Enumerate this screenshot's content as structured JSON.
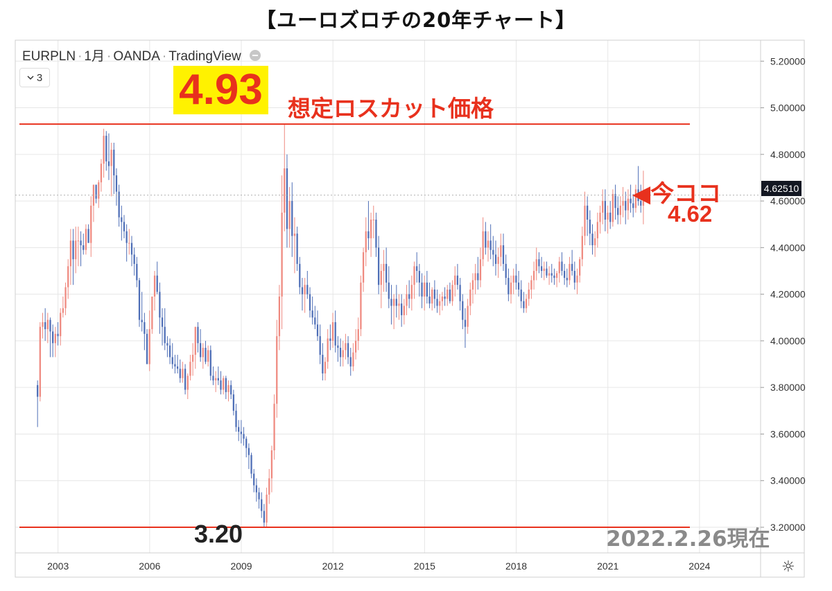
{
  "title": "【ユーロズロチの20年チャート】",
  "header": {
    "symbol": "EURPLN",
    "interval": "1月",
    "broker": "OANDA",
    "platform": "TradingView",
    "indicator_count": "3",
    "indicator_toggle_icon": "chevron-down-icon",
    "visibility_icon": "eye-icon"
  },
  "annotations": {
    "losscut_value": "4.93",
    "losscut_label": "想定ロスカット価格",
    "now_label": "◀今ココ",
    "now_value": "4.62",
    "low_value": "3.20",
    "as_of": "2022.2.26現在"
  },
  "price_tag": "4.62510",
  "settings_icon": "gear-icon",
  "colors": {
    "up": "#ef8a80",
    "down": "#4f6fb7",
    "annotation_red": "#e8311d",
    "highlight_yellow": "#fff200",
    "grid": "#e6e6e6"
  },
  "chart_data": {
    "type": "candlestick",
    "title": "【ユーロズロチの20年チャート】",
    "symbol": "EURPLN",
    "timeframe": "monthly",
    "x_tick_labels": [
      "2003",
      "2006",
      "2009",
      "2012",
      "2015",
      "2018",
      "2021",
      "2024"
    ],
    "y_tick_labels": [
      "5.20000",
      "5.00000",
      "4.80000",
      "4.60000",
      "4.40000",
      "4.20000",
      "4.00000",
      "3.80000",
      "3.60000",
      "3.40000",
      "3.20000"
    ],
    "ylim": [
      3.09,
      5.29
    ],
    "xlim": [
      2001.6,
      2026.0
    ],
    "grid": true,
    "horizontal_lines": [
      {
        "value": 4.93,
        "label": "4.93 想定ロスカット価格"
      },
      {
        "value": 3.2,
        "label": "3.20"
      }
    ],
    "last_price": 4.6251,
    "x_start": 2002.33,
    "x_step": 0.08333,
    "ohlc": [
      [
        3.81,
        3.83,
        3.63,
        3.76
      ],
      [
        3.76,
        4.08,
        3.74,
        4.06
      ],
      [
        4.06,
        4.12,
        4.01,
        4.08
      ],
      [
        4.08,
        4.14,
        4.0,
        4.05
      ],
      [
        4.05,
        4.12,
        3.99,
        4.09
      ],
      [
        4.09,
        4.1,
        3.93,
        4.04
      ],
      [
        4.04,
        4.07,
        3.93,
        3.99
      ],
      [
        3.99,
        4.06,
        3.93,
        4.03
      ],
      [
        4.03,
        4.08,
        3.98,
        4.02
      ],
      [
        4.02,
        4.14,
        3.98,
        4.12
      ],
      [
        4.12,
        4.19,
        4.1,
        4.14
      ],
      [
        4.14,
        4.25,
        4.11,
        4.23
      ],
      [
        4.23,
        4.35,
        4.18,
        4.32
      ],
      [
        4.32,
        4.48,
        4.24,
        4.43
      ],
      [
        4.43,
        4.48,
        4.24,
        4.35
      ],
      [
        4.35,
        4.49,
        4.29,
        4.43
      ],
      [
        4.43,
        4.49,
        4.32,
        4.43
      ],
      [
        4.43,
        4.47,
        4.32,
        4.41
      ],
      [
        4.41,
        4.46,
        4.37,
        4.39
      ],
      [
        4.39,
        4.5,
        4.37,
        4.48
      ],
      [
        4.48,
        4.5,
        4.42,
        4.42
      ],
      [
        4.42,
        4.62,
        4.36,
        4.58
      ],
      [
        4.58,
        4.67,
        4.51,
        4.67
      ],
      [
        4.67,
        4.67,
        4.59,
        4.61
      ],
      [
        4.61,
        4.69,
        4.57,
        4.68
      ],
      [
        4.68,
        4.78,
        4.64,
        4.76
      ],
      [
        4.76,
        4.91,
        4.7,
        4.88
      ],
      [
        4.88,
        4.9,
        4.73,
        4.77
      ],
      [
        4.77,
        4.89,
        4.69,
        4.75
      ],
      [
        4.75,
        4.85,
        4.62,
        4.82
      ],
      [
        4.82,
        4.85,
        4.63,
        4.71
      ],
      [
        4.71,
        4.74,
        4.58,
        4.64
      ],
      [
        4.64,
        4.67,
        4.49,
        4.53
      ],
      [
        4.53,
        4.58,
        4.43,
        4.51
      ],
      [
        4.51,
        4.54,
        4.44,
        4.47
      ],
      [
        4.47,
        4.5,
        4.34,
        4.42
      ],
      [
        4.42,
        4.48,
        4.37,
        4.42
      ],
      [
        4.42,
        4.45,
        4.32,
        4.37
      ],
      [
        4.37,
        4.4,
        4.28,
        4.33
      ],
      [
        4.33,
        4.36,
        4.23,
        4.26
      ],
      [
        4.26,
        4.27,
        4.06,
        4.09
      ],
      [
        4.09,
        4.21,
        4.04,
        4.08
      ],
      [
        4.08,
        4.12,
        3.96,
        4.03
      ],
      [
        4.03,
        4.05,
        3.9,
        3.9
      ],
      [
        3.9,
        4.13,
        3.87,
        4.05
      ],
      [
        4.05,
        4.19,
        4.03,
        4.19
      ],
      [
        4.19,
        4.3,
        4.13,
        4.28
      ],
      [
        4.28,
        4.34,
        4.2,
        4.21
      ],
      [
        4.21,
        4.25,
        4.03,
        4.1
      ],
      [
        4.1,
        4.14,
        3.98,
        4.06
      ],
      [
        4.06,
        4.14,
        3.96,
        3.99
      ],
      [
        3.99,
        4.02,
        3.93,
        3.98
      ],
      [
        3.98,
        4.01,
        3.9,
        3.93
      ],
      [
        3.93,
        3.99,
        3.88,
        3.9
      ],
      [
        3.9,
        3.94,
        3.86,
        3.89
      ],
      [
        3.89,
        3.94,
        3.86,
        3.88
      ],
      [
        3.88,
        3.92,
        3.82,
        3.84
      ],
      [
        3.84,
        3.91,
        3.82,
        3.88
      ],
      [
        3.88,
        3.9,
        3.77,
        3.79
      ],
      [
        3.79,
        3.86,
        3.75,
        3.85
      ],
      [
        3.85,
        3.94,
        3.83,
        3.91
      ],
      [
        3.91,
        3.99,
        3.85,
        3.94
      ],
      [
        3.94,
        4.06,
        3.88,
        4.06
      ],
      [
        4.06,
        4.08,
        3.95,
        3.99
      ],
      [
        3.99,
        4.05,
        3.91,
        3.93
      ],
      [
        3.93,
        3.99,
        3.88,
        3.97
      ],
      [
        3.97,
        4.0,
        3.9,
        3.91
      ],
      [
        3.91,
        3.98,
        3.89,
        3.96
      ],
      [
        3.96,
        3.98,
        3.83,
        3.85
      ],
      [
        3.85,
        3.89,
        3.81,
        3.83
      ],
      [
        3.83,
        3.87,
        3.78,
        3.84
      ],
      [
        3.84,
        3.89,
        3.81,
        3.83
      ],
      [
        3.83,
        3.87,
        3.77,
        3.79
      ],
      [
        3.79,
        3.85,
        3.77,
        3.84
      ],
      [
        3.84,
        3.85,
        3.75,
        3.78
      ],
      [
        3.78,
        3.83,
        3.74,
        3.81
      ],
      [
        3.81,
        3.83,
        3.75,
        3.77
      ],
      [
        3.77,
        3.79,
        3.68,
        3.7
      ],
      [
        3.7,
        3.73,
        3.61,
        3.63
      ],
      [
        3.63,
        3.66,
        3.57,
        3.61
      ],
      [
        3.61,
        3.66,
        3.56,
        3.6
      ],
      [
        3.6,
        3.63,
        3.55,
        3.58
      ],
      [
        3.58,
        3.59,
        3.5,
        3.54
      ],
      [
        3.54,
        3.56,
        3.45,
        3.51
      ],
      [
        3.51,
        3.52,
        3.41,
        3.43
      ],
      [
        3.43,
        3.45,
        3.35,
        3.38
      ],
      [
        3.38,
        3.41,
        3.31,
        3.35
      ],
      [
        3.35,
        3.37,
        3.28,
        3.32
      ],
      [
        3.32,
        3.35,
        3.24,
        3.27
      ],
      [
        3.27,
        3.3,
        3.2,
        3.22
      ],
      [
        3.22,
        3.37,
        3.2,
        3.34
      ],
      [
        3.34,
        3.45,
        3.3,
        3.41
      ],
      [
        3.41,
        3.55,
        3.35,
        3.53
      ],
      [
        3.53,
        3.77,
        3.49,
        3.73
      ],
      [
        3.73,
        4.09,
        3.67,
        4.02
      ],
      [
        4.02,
        4.24,
        3.96,
        4.19
      ],
      [
        4.19,
        4.71,
        4.05,
        4.55
      ],
      [
        4.55,
        4.93,
        4.47,
        4.74
      ],
      [
        4.74,
        4.8,
        4.4,
        4.48
      ],
      [
        4.48,
        4.66,
        4.4,
        4.6
      ],
      [
        4.6,
        4.68,
        4.36,
        4.45
      ],
      [
        4.45,
        4.53,
        4.29,
        4.46
      ],
      [
        4.46,
        4.49,
        4.3,
        4.33
      ],
      [
        4.33,
        4.36,
        4.2,
        4.23
      ],
      [
        4.23,
        4.27,
        4.13,
        4.2
      ],
      [
        4.2,
        4.27,
        4.12,
        4.24
      ],
      [
        4.24,
        4.3,
        4.18,
        4.2
      ],
      [
        4.2,
        4.23,
        4.1,
        4.13
      ],
      [
        4.13,
        4.19,
        4.07,
        4.1
      ],
      [
        4.1,
        4.15,
        4.05,
        4.07
      ],
      [
        4.07,
        4.13,
        4.0,
        4.02
      ],
      [
        4.02,
        4.07,
        3.9,
        3.94
      ],
      [
        3.94,
        3.99,
        3.83,
        3.86
      ],
      [
        3.86,
        3.93,
        3.83,
        3.91
      ],
      [
        3.91,
        4.05,
        3.88,
        4.01
      ],
      [
        4.01,
        4.07,
        3.96,
        4.0
      ],
      [
        4.0,
        4.12,
        3.97,
        4.08
      ],
      [
        4.08,
        4.13,
        3.95,
        3.98
      ],
      [
        3.98,
        4.02,
        3.91,
        3.97
      ],
      [
        3.97,
        4.01,
        3.89,
        3.93
      ],
      [
        3.93,
        4.0,
        3.89,
        3.96
      ],
      [
        3.96,
        4.03,
        3.92,
        3.99
      ],
      [
        3.99,
        4.02,
        3.9,
        3.93
      ],
      [
        3.93,
        3.97,
        3.85,
        3.89
      ],
      [
        3.89,
        3.99,
        3.87,
        3.95
      ],
      [
        3.95,
        4.05,
        3.92,
        4.0
      ],
      [
        4.0,
        4.1,
        3.96,
        4.05
      ],
      [
        4.05,
        4.28,
        4.02,
        4.25
      ],
      [
        4.25,
        4.4,
        4.21,
        4.38
      ],
      [
        4.38,
        4.53,
        4.32,
        4.47
      ],
      [
        4.47,
        4.6,
        4.39,
        4.44
      ],
      [
        4.44,
        4.55,
        4.36,
        4.52
      ],
      [
        4.52,
        4.58,
        4.44,
        4.52
      ],
      [
        4.52,
        4.55,
        4.36,
        4.4
      ],
      [
        4.4,
        4.45,
        4.2,
        4.24
      ],
      [
        4.24,
        4.33,
        4.14,
        4.3
      ],
      [
        4.3,
        4.39,
        4.21,
        4.33
      ],
      [
        4.33,
        4.4,
        4.21,
        4.25
      ],
      [
        4.25,
        4.32,
        4.14,
        4.18
      ],
      [
        4.18,
        4.24,
        4.07,
        4.15
      ],
      [
        4.15,
        4.2,
        4.05,
        4.18
      ],
      [
        4.18,
        4.24,
        4.1,
        4.15
      ],
      [
        4.15,
        4.2,
        4.09,
        4.16
      ],
      [
        4.16,
        4.2,
        4.06,
        4.11
      ],
      [
        4.11,
        4.18,
        4.07,
        4.15
      ],
      [
        4.15,
        4.24,
        4.11,
        4.2
      ],
      [
        4.2,
        4.26,
        4.14,
        4.18
      ],
      [
        4.18,
        4.28,
        4.13,
        4.24
      ],
      [
        4.24,
        4.34,
        4.18,
        4.32
      ],
      [
        4.32,
        4.38,
        4.25,
        4.3
      ],
      [
        4.3,
        4.33,
        4.19,
        4.25
      ],
      [
        4.25,
        4.29,
        4.14,
        4.19
      ],
      [
        4.19,
        4.28,
        4.13,
        4.25
      ],
      [
        4.25,
        4.3,
        4.16,
        4.19
      ],
      [
        4.19,
        4.25,
        4.14,
        4.16
      ],
      [
        4.16,
        4.23,
        4.13,
        4.22
      ],
      [
        4.22,
        4.26,
        4.14,
        4.18
      ],
      [
        4.18,
        4.22,
        4.12,
        4.15
      ],
      [
        4.15,
        4.2,
        4.11,
        4.17
      ],
      [
        4.17,
        4.21,
        4.13,
        4.19
      ],
      [
        4.19,
        4.23,
        4.15,
        4.18
      ],
      [
        4.18,
        4.24,
        4.15,
        4.22
      ],
      [
        4.22,
        4.25,
        4.16,
        4.17
      ],
      [
        4.17,
        4.26,
        4.15,
        4.24
      ],
      [
        4.24,
        4.32,
        4.19,
        4.28
      ],
      [
        4.28,
        4.33,
        4.22,
        4.24
      ],
      [
        4.24,
        4.27,
        4.13,
        4.17
      ],
      [
        4.17,
        4.2,
        4.05,
        4.09
      ],
      [
        4.09,
        4.14,
        3.97,
        4.06
      ],
      [
        4.06,
        4.18,
        4.03,
        4.15
      ],
      [
        4.15,
        4.25,
        4.11,
        4.22
      ],
      [
        4.22,
        4.29,
        4.16,
        4.26
      ],
      [
        4.26,
        4.33,
        4.2,
        4.29
      ],
      [
        4.29,
        4.36,
        4.22,
        4.26
      ],
      [
        4.26,
        4.4,
        4.23,
        4.35
      ],
      [
        4.35,
        4.53,
        4.32,
        4.47
      ],
      [
        4.47,
        4.51,
        4.37,
        4.4
      ],
      [
        4.4,
        4.47,
        4.34,
        4.43
      ],
      [
        4.43,
        4.5,
        4.35,
        4.39
      ],
      [
        4.39,
        4.45,
        4.32,
        4.37
      ],
      [
        4.37,
        4.43,
        4.28,
        4.33
      ],
      [
        4.33,
        4.4,
        4.27,
        4.36
      ],
      [
        4.36,
        4.46,
        4.32,
        4.41
      ],
      [
        4.41,
        4.46,
        4.3,
        4.33
      ],
      [
        4.33,
        4.37,
        4.24,
        4.27
      ],
      [
        4.27,
        4.31,
        4.17,
        4.2
      ],
      [
        4.2,
        4.28,
        4.16,
        4.25
      ],
      [
        4.25,
        4.31,
        4.2,
        4.28
      ],
      [
        4.28,
        4.33,
        4.22,
        4.25
      ],
      [
        4.25,
        4.3,
        4.19,
        4.22
      ],
      [
        4.22,
        4.26,
        4.14,
        4.17
      ],
      [
        4.17,
        4.21,
        4.12,
        4.14
      ],
      [
        4.14,
        4.2,
        4.12,
        4.18
      ],
      [
        4.18,
        4.25,
        4.15,
        4.22
      ],
      [
        4.22,
        4.28,
        4.18,
        4.26
      ],
      [
        4.26,
        4.34,
        4.22,
        4.3
      ],
      [
        4.3,
        4.4,
        4.26,
        4.35
      ],
      [
        4.35,
        4.38,
        4.29,
        4.32
      ],
      [
        4.32,
        4.36,
        4.27,
        4.3
      ],
      [
        4.3,
        4.34,
        4.26,
        4.31
      ],
      [
        4.31,
        4.34,
        4.27,
        4.28
      ],
      [
        4.28,
        4.32,
        4.24,
        4.29
      ],
      [
        4.29,
        4.33,
        4.25,
        4.28
      ],
      [
        4.28,
        4.31,
        4.24,
        4.27
      ],
      [
        4.27,
        4.3,
        4.23,
        4.29
      ],
      [
        4.29,
        4.36,
        4.25,
        4.34
      ],
      [
        4.34,
        4.38,
        4.28,
        4.3
      ],
      [
        4.3,
        4.33,
        4.24,
        4.27
      ],
      [
        4.27,
        4.31,
        4.23,
        4.26
      ],
      [
        4.26,
        4.36,
        4.24,
        4.33
      ],
      [
        4.33,
        4.39,
        4.28,
        4.3
      ],
      [
        4.3,
        4.34,
        4.22,
        4.25
      ],
      [
        4.25,
        4.31,
        4.2,
        4.28
      ],
      [
        4.28,
        4.36,
        4.25,
        4.35
      ],
      [
        4.35,
        4.49,
        4.32,
        4.45
      ],
      [
        4.45,
        4.64,
        4.41,
        4.58
      ],
      [
        4.58,
        4.62,
        4.45,
        4.52
      ],
      [
        4.52,
        4.56,
        4.41,
        4.46
      ],
      [
        4.46,
        4.5,
        4.37,
        4.41
      ],
      [
        4.41,
        4.47,
        4.36,
        4.44
      ],
      [
        4.44,
        4.55,
        4.4,
        4.51
      ],
      [
        4.51,
        4.58,
        4.46,
        4.55
      ],
      [
        4.55,
        4.65,
        4.5,
        4.6
      ],
      [
        4.6,
        4.65,
        4.47,
        4.52
      ],
      [
        4.52,
        4.58,
        4.46,
        4.55
      ],
      [
        4.55,
        4.6,
        4.48,
        4.51
      ],
      [
        4.51,
        4.65,
        4.49,
        4.63
      ],
      [
        4.63,
        4.67,
        4.52,
        4.57
      ],
      [
        4.57,
        4.62,
        4.5,
        4.54
      ],
      [
        4.54,
        4.62,
        4.5,
        4.58
      ],
      [
        4.58,
        4.66,
        4.53,
        4.6
      ],
      [
        4.6,
        4.64,
        4.5,
        4.56
      ],
      [
        4.56,
        4.65,
        4.52,
        4.61
      ],
      [
        4.61,
        4.67,
        4.55,
        4.59
      ],
      [
        4.59,
        4.63,
        4.53,
        4.57
      ],
      [
        4.57,
        4.67,
        4.55,
        4.65
      ],
      [
        4.65,
        4.75,
        4.58,
        4.6
      ],
      [
        4.6,
        4.67,
        4.55,
        4.58
      ],
      [
        4.58,
        4.73,
        4.5,
        4.6
      ]
    ]
  }
}
